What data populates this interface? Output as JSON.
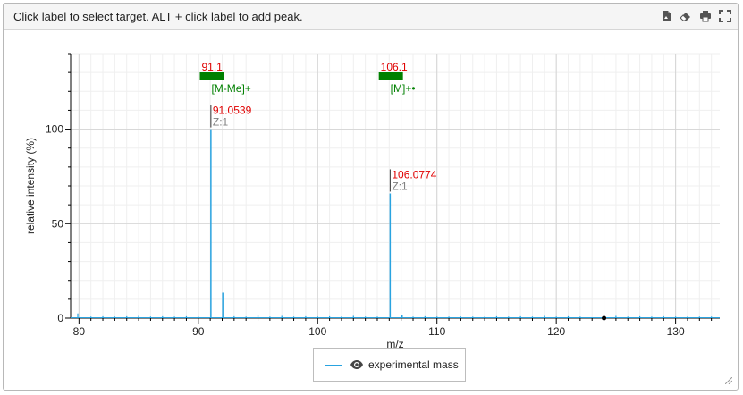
{
  "header": {
    "instruction": "Click label to select target. ALT + click label to add peak."
  },
  "toolbar": {
    "icons": [
      "export-image-icon",
      "eraser-icon",
      "print-icon",
      "fullscreen-icon"
    ]
  },
  "legend": {
    "label": "experimental mass"
  },
  "colors": {
    "spectrum": "#29a3e0",
    "annotation_red": "#e00000",
    "annotation_gray": "#808080",
    "target_green": "#008000"
  },
  "chart_data": {
    "type": "line",
    "xlabel": "m/z",
    "ylabel": "relative intensity (%)",
    "xlim": [
      79.3,
      133.7
    ],
    "ylim": [
      0,
      140
    ],
    "x_ticks": [
      80,
      90,
      100,
      110,
      120,
      130
    ],
    "y_ticks": [
      0,
      50,
      100
    ],
    "grid": true,
    "series": [
      {
        "name": "experimental mass",
        "peaks": [
          {
            "x": 91.0539,
            "y": 100
          },
          {
            "x": 92.05,
            "y": 13.5
          },
          {
            "x": 106.0774,
            "y": 66
          },
          {
            "x": 107.08,
            "y": 1.5
          }
        ],
        "noise": [
          {
            "x": 79.9,
            "y": 2.5
          },
          {
            "x": 81.0,
            "y": 0.8
          },
          {
            "x": 82.0,
            "y": 1.0
          },
          {
            "x": 83.0,
            "y": 0.8
          },
          {
            "x": 84.0,
            "y": 1.0
          },
          {
            "x": 85.0,
            "y": 1.2
          },
          {
            "x": 86.0,
            "y": 0.8
          },
          {
            "x": 87.0,
            "y": 1.0
          },
          {
            "x": 88.0,
            "y": 0.8
          },
          {
            "x": 89.0,
            "y": 1.0
          },
          {
            "x": 90.0,
            "y": 0.8
          },
          {
            "x": 93.0,
            "y": 1.0
          },
          {
            "x": 94.0,
            "y": 0.8
          },
          {
            "x": 95.0,
            "y": 1.5
          },
          {
            "x": 96.0,
            "y": 0.8
          },
          {
            "x": 97.0,
            "y": 1.2
          },
          {
            "x": 98.0,
            "y": 0.8
          },
          {
            "x": 99.0,
            "y": 1.0
          },
          {
            "x": 100.0,
            "y": 0.8
          },
          {
            "x": 101.0,
            "y": 1.0
          },
          {
            "x": 102.0,
            "y": 0.8
          },
          {
            "x": 103.0,
            "y": 1.2
          },
          {
            "x": 104.0,
            "y": 0.8
          },
          {
            "x": 105.0,
            "y": 0.8
          },
          {
            "x": 108.0,
            "y": 0.8
          },
          {
            "x": 109.0,
            "y": 1.0
          },
          {
            "x": 110.0,
            "y": 0.8
          },
          {
            "x": 111.0,
            "y": 0.8
          },
          {
            "x": 112.0,
            "y": 0.8
          },
          {
            "x": 113.0,
            "y": 0.8
          },
          {
            "x": 114.0,
            "y": 0.8
          },
          {
            "x": 115.0,
            "y": 1.0
          },
          {
            "x": 116.0,
            "y": 0.8
          },
          {
            "x": 117.0,
            "y": 1.0
          },
          {
            "x": 118.0,
            "y": 0.8
          },
          {
            "x": 119.0,
            "y": 1.2
          },
          {
            "x": 120.0,
            "y": 0.8
          },
          {
            "x": 121.0,
            "y": 1.0
          },
          {
            "x": 122.0,
            "y": 0.8
          },
          {
            "x": 125.0,
            "y": 1.2
          },
          {
            "x": 126.0,
            "y": 0.8
          },
          {
            "x": 127.0,
            "y": 1.0
          },
          {
            "x": 128.0,
            "y": 0.8
          },
          {
            "x": 129.0,
            "y": 1.0
          },
          {
            "x": 130.0,
            "y": 0.8
          },
          {
            "x": 131.0,
            "y": 0.8
          },
          {
            "x": 132.0,
            "y": 0.8
          },
          {
            "x": 133.0,
            "y": 0.8
          }
        ]
      }
    ],
    "marker": {
      "x": 124.0,
      "y": 0
    },
    "peak_labels": [
      {
        "x": 91.0539,
        "y": 100,
        "mz": "91.0539",
        "charge": "Z:1"
      },
      {
        "x": 106.0774,
        "y": 66,
        "mz": "106.0774",
        "charge": "Z:1"
      }
    ],
    "targets": [
      {
        "x": 91.1,
        "label": "91.1",
        "ion": "[M-Me]+"
      },
      {
        "x": 106.1,
        "label": "106.1",
        "ion": "[M]+•"
      }
    ]
  }
}
